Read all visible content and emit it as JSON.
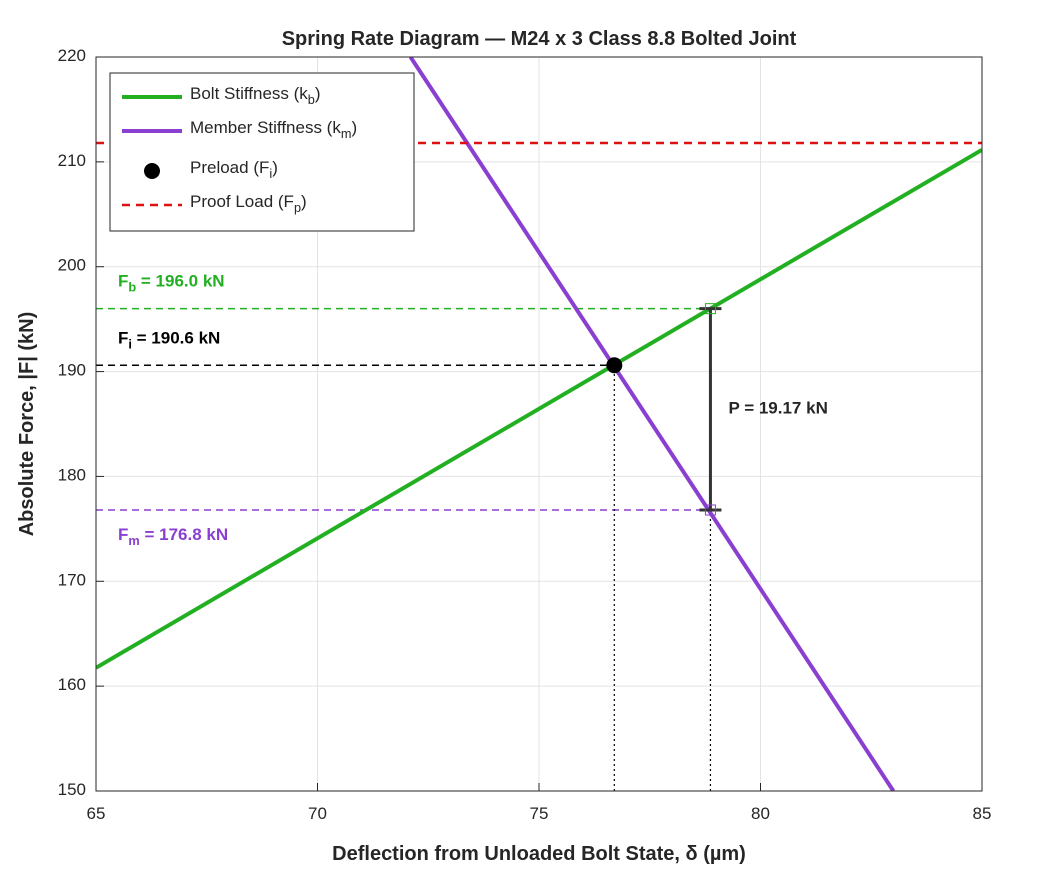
{
  "chart_data": {
    "type": "line",
    "title": "Spring Rate Diagram — M24 x 3 Class 8.8 Bolted Joint",
    "xlabel": "Deflection from Unloaded Bolt State, δ (µm)",
    "ylabel": "Absolute Force, |F| (kN)",
    "xlim": [
      65,
      85
    ],
    "ylim": [
      150,
      220
    ],
    "xticks": [
      65,
      70,
      75,
      80,
      85
    ],
    "yticks": [
      150,
      160,
      170,
      180,
      190,
      200,
      210,
      220
    ],
    "grid": true,
    "legend_location": "northwest",
    "series": [
      {
        "name": "Bolt Stiffness (k_b)",
        "color": "#22b022",
        "style": "solid",
        "x": [
          65,
          85
        ],
        "values": [
          161.75,
          211.15
        ]
      },
      {
        "name": "Member Stiffness (k_m)",
        "color": "#8a3fd0",
        "style": "solid",
        "x": [
          72.1,
          83.0
        ],
        "values": [
          220,
          150
        ]
      },
      {
        "name": "Preload (F_i)",
        "color": "#000000",
        "style": "marker",
        "x": [
          76.7
        ],
        "values": [
          190.6
        ]
      },
      {
        "name": "Proof Load (F_p)",
        "color": "#dd1111",
        "style": "dashed",
        "x": [
          65,
          85
        ],
        "values": [
          211.8,
          211.8
        ]
      }
    ],
    "annotations": [
      {
        "text": "F_b = 196.0 kN",
        "color": "#22b022",
        "value": 196.0,
        "x_end": 78.87
      },
      {
        "text": "F_i = 190.6 kN",
        "color": "#000000",
        "value": 190.6,
        "x_end": 76.7
      },
      {
        "text": "F_m = 176.8 kN",
        "color": "#8a3fd0",
        "value": 176.8,
        "x_end": 78.87
      }
    ],
    "load": {
      "text": "P = 19.17 kN",
      "x": 78.87,
      "lower": 176.8,
      "upper": 196.0
    }
  }
}
